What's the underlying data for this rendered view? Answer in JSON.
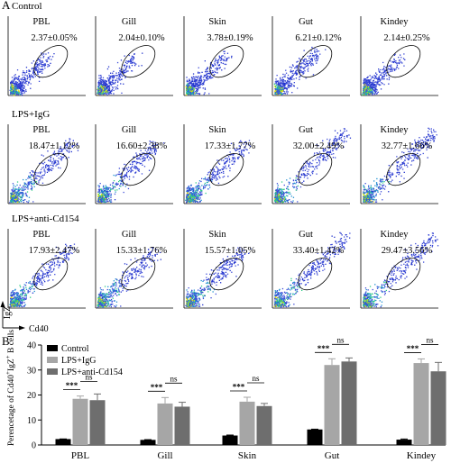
{
  "panels": {
    "a_label": "A",
    "b_label": "B"
  },
  "flow": {
    "tissues": [
      "PBL",
      "Gill",
      "Skin",
      "Gut",
      "Kindey"
    ],
    "y_axis_label": "IgZ",
    "x_axis_label": "Cd40",
    "groups": [
      {
        "name": "Control",
        "gate_percent": [
          "2.37±0.05%",
          "2.04±0.10%",
          "3.78±0.19%",
          "6.21±0.12%",
          "2.14±0.25%"
        ]
      },
      {
        "name": "LPS+IgG",
        "gate_percent": [
          "18.47±1.12%",
          "16.60±2.38%",
          "17.33±1.77%",
          "32.00±2.49%",
          "32.77±1.66%"
        ]
      },
      {
        "name": "LPS+anti-Cd154",
        "gate_percent": [
          "17.93±2.47%",
          "15.33±1.76%",
          "15.57±1.05%",
          "33.40±1.42%",
          "29.47±3.56%"
        ]
      }
    ]
  },
  "chart_data": {
    "type": "bar",
    "title": "",
    "xlabel": "",
    "ylabel": "Perencetage of Cd40+IgZ+ B cells",
    "ylabel_parts": {
      "pre": "Perencetage of Cd40",
      "sup1": "+",
      "mid": "IgZ",
      "sup2": "+",
      "post": " B cells"
    },
    "ylim": [
      0,
      40
    ],
    "yticks": [
      "0",
      "10",
      "20",
      "30",
      "40"
    ],
    "categories": [
      "PBL",
      "Gill",
      "Skin",
      "Gut",
      "Kindey"
    ],
    "legend_position": "top-left",
    "series": [
      {
        "name": "Control",
        "color": "#000000",
        "values": [
          2.37,
          2.04,
          3.78,
          6.21,
          2.14
        ],
        "errors": [
          0.05,
          0.1,
          0.19,
          0.12,
          0.25
        ]
      },
      {
        "name": "LPS+IgG",
        "color": "#a6a6a6",
        "values": [
          18.47,
          16.6,
          17.33,
          32.0,
          32.77
        ],
        "errors": [
          1.12,
          2.38,
          1.77,
          2.49,
          1.66
        ]
      },
      {
        "name": "LPS+anti-Cd154",
        "color": "#6e6e6e",
        "values": [
          17.93,
          15.33,
          15.57,
          33.4,
          29.47
        ],
        "errors": [
          2.47,
          1.76,
          1.05,
          1.42,
          3.56
        ]
      }
    ],
    "significance": [
      {
        "left": "***",
        "right": "ns"
      },
      {
        "left": "***",
        "right": "ns"
      },
      {
        "left": "***",
        "right": "ns"
      },
      {
        "left": "***",
        "right": "ns"
      },
      {
        "left": "***",
        "right": "ns"
      }
    ]
  }
}
